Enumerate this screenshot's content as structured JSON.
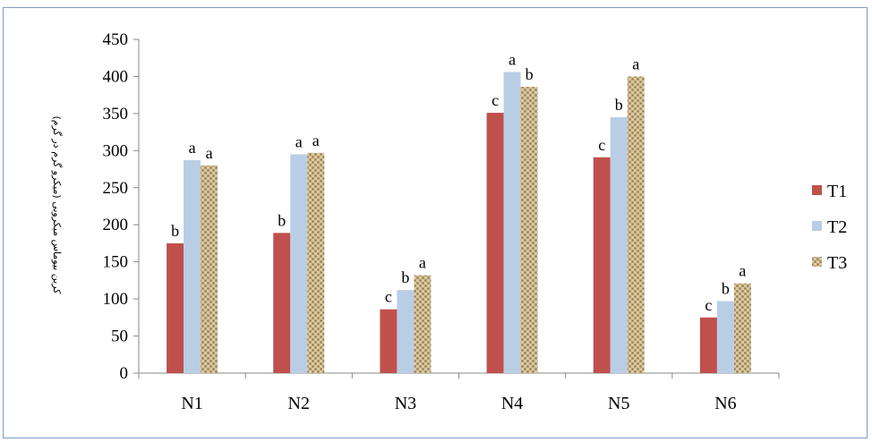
{
  "chart_data": {
    "type": "bar",
    "categories": [
      "N1",
      "N2",
      "N3",
      "N4",
      "N5",
      "N6"
    ],
    "ylabel": "کربن بیوماس میکروبی (میکرو گرم در گرم)",
    "ylim": [
      0,
      450
    ],
    "yticks": [
      0,
      50,
      100,
      150,
      200,
      250,
      300,
      350,
      400,
      450
    ],
    "grid": false,
    "legend_position": "right",
    "series": [
      {
        "name": "T1",
        "color": "#c0504d",
        "values": [
          175,
          189,
          86,
          351,
          291,
          75
        ],
        "labels": [
          "b",
          "b",
          "c",
          "c",
          "c",
          "c"
        ]
      },
      {
        "name": "T2",
        "color": "#b9cde5",
        "values": [
          287,
          295,
          112,
          406,
          345,
          97
        ],
        "labels": [
          "a",
          "a",
          "b",
          "a",
          "b",
          "b"
        ]
      },
      {
        "name": "T3",
        "color": "#c8b48a",
        "values": [
          280,
          297,
          132,
          386,
          400,
          121
        ],
        "labels": [
          "a",
          "a",
          "a",
          "b",
          "a",
          "a"
        ]
      }
    ]
  }
}
